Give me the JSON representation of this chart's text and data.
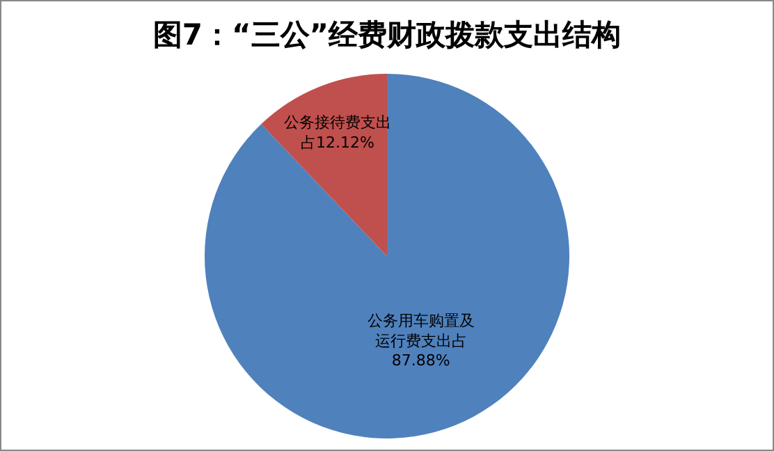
{
  "chart_data": {
    "type": "pie",
    "title": "图7：“三公”经费财政拨款支出结构",
    "categories": [
      "公务用车购置及运行费支出占",
      "公务接待费支出占"
    ],
    "values": [
      87.88,
      12.12
    ],
    "colors": [
      "#4f81bd",
      "#c0504d"
    ],
    "value_labels": [
      "87.88%",
      "12.12%"
    ],
    "legend": false
  }
}
